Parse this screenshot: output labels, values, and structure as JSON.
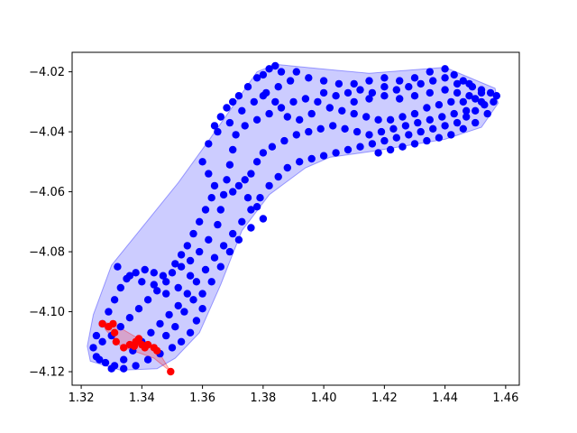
{
  "chart_data": {
    "type": "scatter",
    "title": "",
    "xlabel": "",
    "ylabel": "",
    "xlim": [
      1.317,
      1.4645
    ],
    "ylim": [
      -4.1245,
      -4.0135
    ],
    "grid": false,
    "legend": "none",
    "xticks": [
      1.32,
      1.34,
      1.36,
      1.38,
      1.4,
      1.42,
      1.44,
      1.46
    ],
    "xtick_labels": [
      "1.32",
      "1.34",
      "1.36",
      "1.38",
      "1.40",
      "1.42",
      "1.44",
      "1.46"
    ],
    "yticks": [
      -4.12,
      -4.1,
      -4.08,
      -4.06,
      -4.04,
      -4.02
    ],
    "ytick_labels": [
      "−4.12",
      "−4.10",
      "−4.08",
      "−4.06",
      "−4.04",
      "−4.02"
    ],
    "series": [
      {
        "color": "#0000ff",
        "hull_fill": "#0000ff",
        "hull_opacity": 0.2,
        "hull": [
          [
            1.384,
            -4.0175
          ],
          [
            1.394,
            -4.0185
          ],
          [
            1.415,
            -4.0205
          ],
          [
            1.44,
            -4.0185
          ],
          [
            1.4565,
            -4.0255
          ],
          [
            1.4575,
            -4.0305
          ],
          [
            1.452,
            -4.0385
          ],
          [
            1.44,
            -4.0425
          ],
          [
            1.428,
            -4.0445
          ],
          [
            1.416,
            -4.0465
          ],
          [
            1.402,
            -4.0485
          ],
          [
            1.394,
            -4.052
          ],
          [
            1.382,
            -4.061
          ],
          [
            1.373,
            -4.073
          ],
          [
            1.366,
            -4.091
          ],
          [
            1.359,
            -4.107
          ],
          [
            1.351,
            -4.1155
          ],
          [
            1.345,
            -4.119
          ],
          [
            1.333,
            -4.1195
          ],
          [
            1.323,
            -4.1165
          ],
          [
            1.322,
            -4.1115
          ],
          [
            1.324,
            -4.101
          ],
          [
            1.33,
            -4.0845
          ],
          [
            1.352,
            -4.057
          ],
          [
            1.362,
            -4.043
          ],
          [
            1.378,
            -4.02
          ]
        ],
        "points": [
          [
            1.384,
            -4.018
          ],
          [
            1.382,
            -4.019
          ],
          [
            1.386,
            -4.02
          ],
          [
            1.391,
            -4.02
          ],
          [
            1.378,
            -4.022
          ],
          [
            1.38,
            -4.021
          ],
          [
            1.37,
            -4.03
          ],
          [
            1.375,
            -4.025
          ],
          [
            1.372,
            -4.028
          ],
          [
            1.368,
            -4.032
          ],
          [
            1.366,
            -4.035
          ],
          [
            1.364,
            -4.038
          ],
          [
            1.362,
            -4.044
          ],
          [
            1.365,
            -4.04
          ],
          [
            1.369,
            -4.037
          ],
          [
            1.373,
            -4.033
          ],
          [
            1.377,
            -4.03
          ],
          [
            1.381,
            -4.027
          ],
          [
            1.385,
            -4.025
          ],
          [
            1.389,
            -4.023
          ],
          [
            1.395,
            -4.022
          ],
          [
            1.4,
            -4.023
          ],
          [
            1.405,
            -4.024
          ],
          [
            1.41,
            -4.024
          ],
          [
            1.415,
            -4.023
          ],
          [
            1.42,
            -4.022
          ],
          [
            1.425,
            -4.023
          ],
          [
            1.43,
            -4.022
          ],
          [
            1.435,
            -4.02
          ],
          [
            1.44,
            -4.019
          ],
          [
            1.443,
            -4.021
          ],
          [
            1.446,
            -4.023
          ],
          [
            1.449,
            -4.025
          ],
          [
            1.452,
            -4.027
          ],
          [
            1.455,
            -4.027
          ],
          [
            1.457,
            -4.028
          ],
          [
            1.456,
            -4.03
          ],
          [
            1.453,
            -4.031
          ],
          [
            1.45,
            -4.033
          ],
          [
            1.447,
            -4.035
          ],
          [
            1.444,
            -4.037
          ],
          [
            1.44,
            -4.038
          ],
          [
            1.436,
            -4.039
          ],
          [
            1.432,
            -4.04
          ],
          [
            1.428,
            -4.041
          ],
          [
            1.424,
            -4.042
          ],
          [
            1.42,
            -4.043
          ],
          [
            1.416,
            -4.044
          ],
          [
            1.412,
            -4.045
          ],
          [
            1.408,
            -4.046
          ],
          [
            1.404,
            -4.047
          ],
          [
            1.4,
            -4.048
          ],
          [
            1.396,
            -4.049
          ],
          [
            1.392,
            -4.05
          ],
          [
            1.388,
            -4.052
          ],
          [
            1.385,
            -4.055
          ],
          [
            1.382,
            -4.058
          ],
          [
            1.379,
            -4.062
          ],
          [
            1.376,
            -4.066
          ],
          [
            1.373,
            -4.07
          ],
          [
            1.37,
            -4.074
          ],
          [
            1.367,
            -4.078
          ],
          [
            1.364,
            -4.082
          ],
          [
            1.361,
            -4.086
          ],
          [
            1.358,
            -4.09
          ],
          [
            1.355,
            -4.094
          ],
          [
            1.352,
            -4.098
          ],
          [
            1.349,
            -4.101
          ],
          [
            1.346,
            -4.104
          ],
          [
            1.343,
            -4.107
          ],
          [
            1.34,
            -4.11
          ],
          [
            1.337,
            -4.113
          ],
          [
            1.334,
            -4.116
          ],
          [
            1.331,
            -4.118
          ],
          [
            1.328,
            -4.117
          ],
          [
            1.325,
            -4.115
          ],
          [
            1.324,
            -4.112
          ],
          [
            1.325,
            -4.108
          ],
          [
            1.327,
            -4.104
          ],
          [
            1.329,
            -4.1
          ],
          [
            1.331,
            -4.096
          ],
          [
            1.333,
            -4.092
          ],
          [
            1.335,
            -4.089
          ],
          [
            1.338,
            -4.087
          ],
          [
            1.341,
            -4.086
          ],
          [
            1.344,
            -4.087
          ],
          [
            1.347,
            -4.088
          ],
          [
            1.35,
            -4.087
          ],
          [
            1.353,
            -4.085
          ],
          [
            1.356,
            -4.083
          ],
          [
            1.359,
            -4.08
          ],
          [
            1.362,
            -4.076
          ],
          [
            1.365,
            -4.071
          ],
          [
            1.366,
            -4.066
          ],
          [
            1.367,
            -4.061
          ],
          [
            1.368,
            -4.056
          ],
          [
            1.369,
            -4.051
          ],
          [
            1.37,
            -4.046
          ],
          [
            1.371,
            -4.041
          ],
          [
            1.374,
            -4.038
          ],
          [
            1.378,
            -4.036
          ],
          [
            1.382,
            -4.034
          ],
          [
            1.386,
            -4.032
          ],
          [
            1.39,
            -4.03
          ],
          [
            1.394,
            -4.029
          ],
          [
            1.398,
            -4.03
          ],
          [
            1.402,
            -4.032
          ],
          [
            1.406,
            -4.033
          ],
          [
            1.41,
            -4.034
          ],
          [
            1.414,
            -4.035
          ],
          [
            1.418,
            -4.036
          ],
          [
            1.422,
            -4.036
          ],
          [
            1.426,
            -4.035
          ],
          [
            1.43,
            -4.034
          ],
          [
            1.434,
            -4.032
          ],
          [
            1.438,
            -4.031
          ],
          [
            1.442,
            -4.03
          ],
          [
            1.446,
            -4.03
          ],
          [
            1.45,
            -4.029
          ],
          [
            1.41,
            -4.03
          ],
          [
            1.415,
            -4.029
          ],
          [
            1.42,
            -4.028
          ],
          [
            1.425,
            -4.029
          ],
          [
            1.43,
            -4.028
          ],
          [
            1.435,
            -4.027
          ],
          [
            1.44,
            -4.026
          ],
          [
            1.444,
            -4.027
          ],
          [
            1.448,
            -4.028
          ],
          [
            1.452,
            -4.03
          ],
          [
            1.36,
            -4.05
          ],
          [
            1.362,
            -4.054
          ],
          [
            1.364,
            -4.058
          ],
          [
            1.363,
            -4.062
          ],
          [
            1.361,
            -4.066
          ],
          [
            1.359,
            -4.07
          ],
          [
            1.357,
            -4.074
          ],
          [
            1.355,
            -4.078
          ],
          [
            1.353,
            -4.081
          ],
          [
            1.351,
            -4.084
          ],
          [
            1.348,
            -4.09
          ],
          [
            1.345,
            -4.093
          ],
          [
            1.342,
            -4.096
          ],
          [
            1.339,
            -4.099
          ],
          [
            1.336,
            -4.102
          ],
          [
            1.333,
            -4.105
          ],
          [
            1.33,
            -4.108
          ],
          [
            1.327,
            -4.11
          ],
          [
            1.326,
            -4.116
          ],
          [
            1.33,
            -4.119
          ],
          [
            1.334,
            -4.119
          ],
          [
            1.338,
            -4.118
          ],
          [
            1.342,
            -4.116
          ],
          [
            1.346,
            -4.114
          ],
          [
            1.35,
            -4.112
          ],
          [
            1.353,
            -4.11
          ],
          [
            1.356,
            -4.107
          ],
          [
            1.358,
            -4.103
          ],
          [
            1.36,
            -4.099
          ],
          [
            1.357,
            -4.096
          ],
          [
            1.354,
            -4.1
          ],
          [
            1.351,
            -4.105
          ],
          [
            1.348,
            -4.108
          ],
          [
            1.332,
            -4.085
          ],
          [
            1.336,
            -4.088
          ],
          [
            1.34,
            -4.09
          ],
          [
            1.344,
            -4.091
          ],
          [
            1.348,
            -4.094
          ],
          [
            1.352,
            -4.092
          ],
          [
            1.356,
            -4.088
          ],
          [
            1.37,
            -4.06
          ],
          [
            1.372,
            -4.058
          ],
          [
            1.374,
            -4.056
          ],
          [
            1.376,
            -4.054
          ],
          [
            1.378,
            -4.05
          ],
          [
            1.38,
            -4.047
          ],
          [
            1.383,
            -4.045
          ],
          [
            1.387,
            -4.043
          ],
          [
            1.391,
            -4.041
          ],
          [
            1.395,
            -4.04
          ],
          [
            1.399,
            -4.039
          ],
          [
            1.403,
            -4.038
          ],
          [
            1.407,
            -4.039
          ],
          [
            1.411,
            -4.04
          ],
          [
            1.415,
            -4.041
          ],
          [
            1.419,
            -4.04
          ],
          [
            1.423,
            -4.039
          ],
          [
            1.427,
            -4.038
          ],
          [
            1.431,
            -4.037
          ],
          [
            1.435,
            -4.036
          ],
          [
            1.439,
            -4.035
          ],
          [
            1.443,
            -4.034
          ],
          [
            1.447,
            -4.033
          ],
          [
            1.375,
            -4.062
          ],
          [
            1.378,
            -4.065
          ],
          [
            1.38,
            -4.069
          ],
          [
            1.376,
            -4.072
          ],
          [
            1.372,
            -4.076
          ],
          [
            1.369,
            -4.08
          ],
          [
            1.366,
            -4.085
          ],
          [
            1.363,
            -4.09
          ],
          [
            1.36,
            -4.094
          ],
          [
            1.38,
            -4.028
          ],
          [
            1.384,
            -4.03
          ],
          [
            1.388,
            -4.035
          ],
          [
            1.392,
            -4.036
          ],
          [
            1.396,
            -4.034
          ],
          [
            1.4,
            -4.027
          ],
          [
            1.404,
            -4.028
          ],
          [
            1.408,
            -4.027
          ],
          [
            1.412,
            -4.026
          ],
          [
            1.416,
            -4.027
          ],
          [
            1.42,
            -4.025
          ],
          [
            1.424,
            -4.026
          ],
          [
            1.428,
            -4.025
          ],
          [
            1.432,
            -4.024
          ],
          [
            1.436,
            -4.023
          ],
          [
            1.44,
            -4.022
          ],
          [
            1.444,
            -4.024
          ],
          [
            1.448,
            -4.024
          ],
          [
            1.452,
            -4.026
          ],
          [
            1.454,
            -4.034
          ],
          [
            1.45,
            -4.037
          ],
          [
            1.446,
            -4.039
          ],
          [
            1.442,
            -4.041
          ],
          [
            1.438,
            -4.042
          ],
          [
            1.434,
            -4.043
          ],
          [
            1.43,
            -4.044
          ],
          [
            1.426,
            -4.045
          ],
          [
            1.422,
            -4.046
          ],
          [
            1.418,
            -4.047
          ]
        ]
      },
      {
        "color": "#ff0000",
        "hull_fill": "#ff0000",
        "hull_opacity": 0.2,
        "hull": [
          [
            1.327,
            -4.1035
          ],
          [
            1.3305,
            -4.104
          ],
          [
            1.339,
            -4.109
          ],
          [
            1.345,
            -4.1125
          ],
          [
            1.3495,
            -4.12
          ],
          [
            1.344,
            -4.1155
          ],
          [
            1.333,
            -4.1115
          ],
          [
            1.328,
            -4.106
          ]
        ],
        "points": [
          [
            1.327,
            -4.104
          ],
          [
            1.329,
            -4.105
          ],
          [
            1.3305,
            -4.104
          ],
          [
            1.331,
            -4.107
          ],
          [
            1.3315,
            -4.11
          ],
          [
            1.334,
            -4.112
          ],
          [
            1.336,
            -4.111
          ],
          [
            1.3375,
            -4.1115
          ],
          [
            1.338,
            -4.11
          ],
          [
            1.339,
            -4.109
          ],
          [
            1.34,
            -4.111
          ],
          [
            1.341,
            -4.112
          ],
          [
            1.342,
            -4.111
          ],
          [
            1.344,
            -4.112
          ],
          [
            1.345,
            -4.113
          ],
          [
            1.3495,
            -4.12
          ]
        ]
      }
    ]
  }
}
